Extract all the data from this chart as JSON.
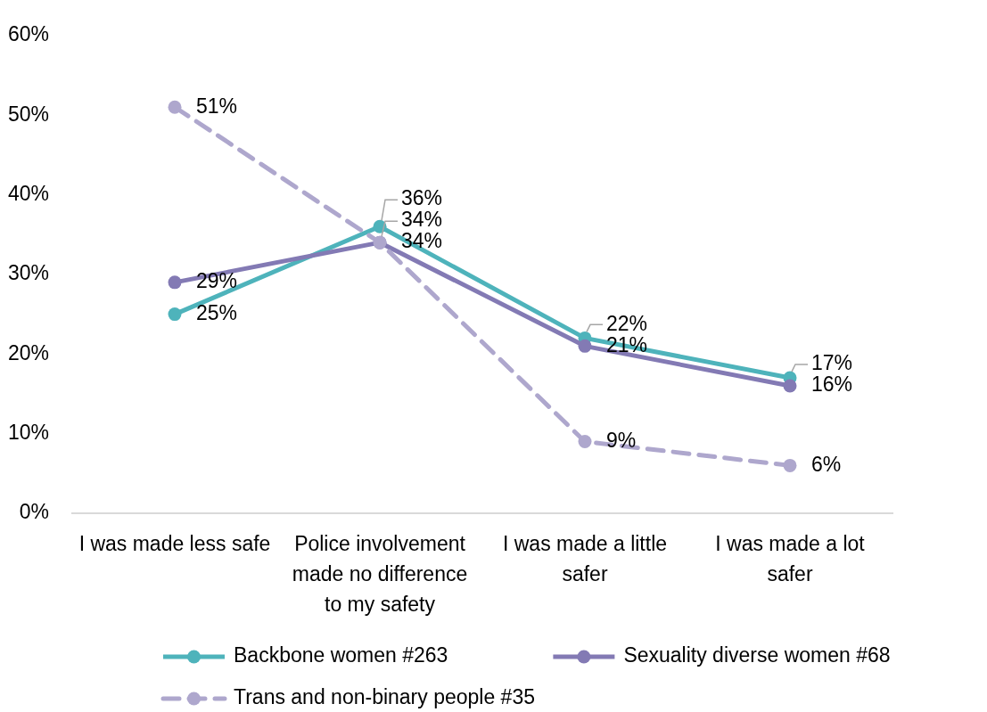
{
  "chart_data": {
    "type": "line",
    "categories": [
      "I was made less safe",
      "Police involvement made no difference to my safety",
      "I was made a little safer",
      "I was made a lot safer"
    ],
    "series": [
      {
        "name": "Backbone women #263",
        "color": "#4eb3bb",
        "values": [
          25,
          36,
          22,
          17
        ],
        "value_labels": [
          "25%",
          "36%",
          "22%",
          "17%"
        ],
        "line_style": "solid"
      },
      {
        "name": "Sexuality diverse women #68",
        "color": "#837ab4",
        "values": [
          29,
          34,
          21,
          16
        ],
        "value_labels": [
          "29%",
          "34%",
          "21%",
          "16%"
        ],
        "line_style": "solid"
      },
      {
        "name": "Trans and non-binary people #35",
        "color": "#aea7cd",
        "values": [
          51,
          34,
          9,
          6
        ],
        "value_labels": [
          "51%",
          "34%",
          "9%",
          "6%"
        ],
        "line_style": "dashed"
      }
    ],
    "ylim": [
      0,
      60
    ],
    "yticks": [
      {
        "value": 0,
        "label": "0%"
      },
      {
        "value": 10,
        "label": "10%"
      },
      {
        "value": 20,
        "label": "20%"
      },
      {
        "value": 30,
        "label": "30%"
      },
      {
        "value": 40,
        "label": "40%"
      },
      {
        "value": 50,
        "label": "50%"
      },
      {
        "value": 60,
        "label": "60%"
      }
    ],
    "grid": false,
    "legend": "bottom",
    "marker": "circle"
  }
}
